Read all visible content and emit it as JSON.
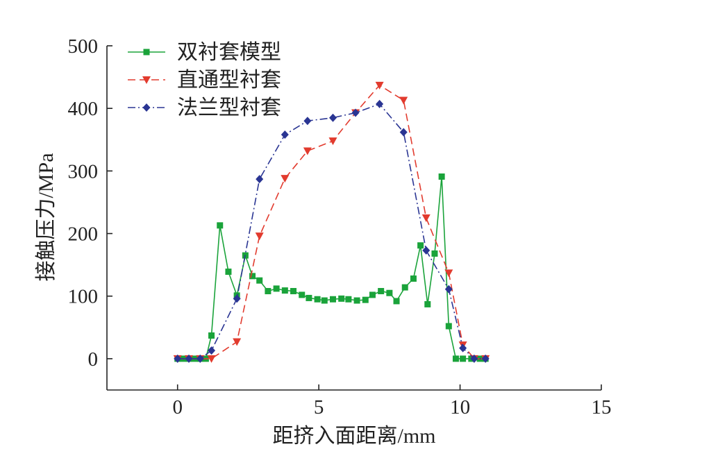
{
  "chart_data": {
    "type": "line",
    "title": "",
    "xlabel": "距挤入面距离/mm",
    "ylabel": "接触压力/MPa",
    "xlim": [
      -2.5,
      15
    ],
    "ylim": [
      -50,
      500
    ],
    "xticks": [
      0,
      5,
      10,
      15
    ],
    "yticks": [
      0,
      100,
      200,
      300,
      400,
      500
    ],
    "grid": false,
    "legend_position": "top-left",
    "series": [
      {
        "name": "双衬套模型",
        "color": "#1aa33a",
        "dash": "solid",
        "marker": "square",
        "points": [
          [
            0,
            0
          ],
          [
            0.2,
            0
          ],
          [
            0.4,
            0
          ],
          [
            0.6,
            0
          ],
          [
            0.8,
            0
          ],
          [
            1.0,
            0
          ],
          [
            1.2,
            37
          ],
          [
            1.5,
            213
          ],
          [
            1.8,
            139
          ],
          [
            2.1,
            101
          ],
          [
            2.4,
            165
          ],
          [
            2.65,
            132
          ],
          [
            2.9,
            125
          ],
          [
            3.2,
            108
          ],
          [
            3.5,
            112
          ],
          [
            3.8,
            109
          ],
          [
            4.1,
            108
          ],
          [
            4.4,
            102
          ],
          [
            4.65,
            97
          ],
          [
            4.95,
            95
          ],
          [
            5.2,
            93
          ],
          [
            5.5,
            95
          ],
          [
            5.8,
            96
          ],
          [
            6.05,
            95
          ],
          [
            6.35,
            93
          ],
          [
            6.65,
            94
          ],
          [
            6.9,
            102
          ],
          [
            7.2,
            108
          ],
          [
            7.5,
            105
          ],
          [
            7.75,
            92
          ],
          [
            8.05,
            114
          ],
          [
            8.35,
            128
          ],
          [
            8.6,
            181
          ],
          [
            8.85,
            87
          ],
          [
            9.1,
            168
          ],
          [
            9.35,
            291
          ],
          [
            9.6,
            52
          ],
          [
            9.85,
            0
          ],
          [
            10.1,
            0
          ],
          [
            10.4,
            0
          ],
          [
            10.7,
            0
          ],
          [
            10.9,
            0
          ]
        ]
      },
      {
        "name": "直通型衬套",
        "color": "#e23b2e",
        "dash": "dashed",
        "marker": "triangle-down",
        "points": [
          [
            0,
            0
          ],
          [
            0.4,
            0
          ],
          [
            0.8,
            0
          ],
          [
            1.2,
            0
          ],
          [
            2.1,
            27
          ],
          [
            2.9,
            196
          ],
          [
            3.8,
            288
          ],
          [
            4.6,
            332
          ],
          [
            5.5,
            348
          ],
          [
            6.3,
            393
          ],
          [
            7.15,
            437
          ],
          [
            8.0,
            413
          ],
          [
            8.8,
            225
          ],
          [
            9.6,
            137
          ],
          [
            10.1,
            22
          ],
          [
            10.5,
            0
          ],
          [
            10.9,
            0
          ]
        ]
      },
      {
        "name": "法兰型衬套",
        "color": "#2a3593",
        "dash": "dashdot",
        "marker": "diamond",
        "points": [
          [
            0,
            0
          ],
          [
            0.4,
            0
          ],
          [
            0.8,
            0
          ],
          [
            1.2,
            13
          ],
          [
            2.1,
            96
          ],
          [
            2.9,
            287
          ],
          [
            3.8,
            358
          ],
          [
            4.6,
            380
          ],
          [
            5.5,
            385
          ],
          [
            6.3,
            393
          ],
          [
            7.15,
            407
          ],
          [
            8.0,
            362
          ],
          [
            8.8,
            173
          ],
          [
            9.6,
            111
          ],
          [
            10.1,
            17
          ],
          [
            10.5,
            0
          ],
          [
            10.9,
            0
          ]
        ]
      }
    ]
  }
}
